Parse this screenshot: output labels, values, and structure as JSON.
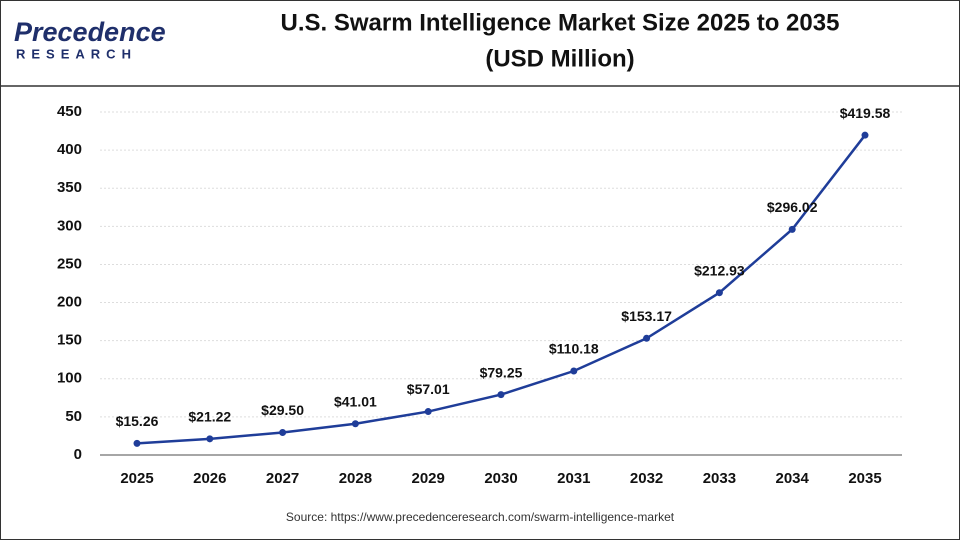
{
  "logo": {
    "name": "Precedence",
    "tagline": "RESEARCH"
  },
  "chart_data": {
    "type": "line",
    "title": "U.S. Swarm Intelligence Market Size 2025 to 2035",
    "subtitle": "(USD Million)",
    "source": "Source: https://www.precedenceresearch.com/swarm-intelligence-market",
    "categories": [
      "2025",
      "2026",
      "2027",
      "2028",
      "2029",
      "2030",
      "2031",
      "2032",
      "2033",
      "2034",
      "2035"
    ],
    "values": [
      15.26,
      21.22,
      29.5,
      41.01,
      57.01,
      79.25,
      110.18,
      153.17,
      212.93,
      296.02,
      419.58
    ],
    "value_labels": [
      "$15.26",
      "$21.22",
      "$29.50",
      "$41.01",
      "$57.01",
      "$79.25",
      "$110.18",
      "$153.17",
      "$212.93",
      "$296.02",
      "$419.58"
    ],
    "color": "#1f3d99",
    "ylim": [
      0,
      450
    ],
    "yticks": [
      0,
      50,
      100,
      150,
      200,
      250,
      300,
      350,
      400,
      450
    ],
    "grid": true
  }
}
